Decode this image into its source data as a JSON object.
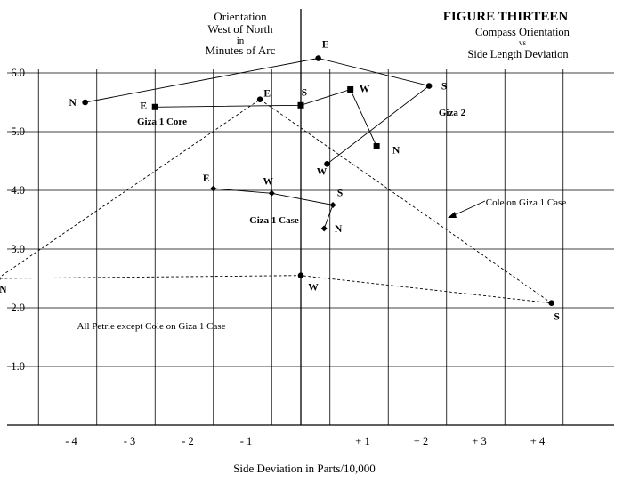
{
  "chart_data": {
    "type": "scatter",
    "title": "FIGURE THIRTEEN",
    "subtitle_lines": [
      "Compass Orientation",
      "vs",
      "Side Length Deviation"
    ],
    "xlabel": "Side Deviation in Parts/10,000",
    "ylabel_lines": [
      "Orientation",
      "West of North",
      "in",
      "Minutes of Arc"
    ],
    "xlim": [
      -5,
      5
    ],
    "ylim": [
      0,
      6.5
    ],
    "grid": true,
    "x_ticks": [
      -4,
      -3,
      -2,
      -1,
      1,
      2,
      3,
      4
    ],
    "x_tick_labels": [
      "- 4",
      "- 3",
      "- 2",
      "- 1",
      "+ 1",
      "+ 2",
      "+ 3",
      "+ 4"
    ],
    "y_ticks": [
      1,
      2,
      3,
      4,
      5,
      6
    ],
    "y_tick_labels": [
      "1.0",
      "2.0",
      "3.0",
      "4.0",
      "5.0",
      "6.0"
    ],
    "series": [
      {
        "name": "Giza 2",
        "marker": "circle",
        "line": "solid",
        "closed": false,
        "points": [
          {
            "label": "N",
            "x": -3.7,
            "y": 5.5
          },
          {
            "label": "E",
            "x": 0.3,
            "y": 6.25
          },
          {
            "label": "S",
            "x": 2.2,
            "y": 5.78
          },
          {
            "label": "W",
            "x": 0.45,
            "y": 4.45
          }
        ]
      },
      {
        "name": "Giza 1 Core",
        "marker": "square",
        "line": "solid",
        "closed": false,
        "points": [
          {
            "label": "E",
            "x": -2.5,
            "y": 5.42
          },
          {
            "label": "S",
            "x": 0.0,
            "y": 5.45
          },
          {
            "label": "W",
            "x": 0.85,
            "y": 5.72
          },
          {
            "label": "N",
            "x": 1.3,
            "y": 4.75
          }
        ]
      },
      {
        "name": "Giza 1 Case",
        "marker": "diamond",
        "line": "solid",
        "closed": false,
        "points": [
          {
            "label": "E",
            "x": -1.5,
            "y": 4.03
          },
          {
            "label": "W",
            "x": -0.5,
            "y": 3.95
          },
          {
            "label": "S",
            "x": 0.55,
            "y": 3.75
          },
          {
            "label": "N",
            "x": 0.4,
            "y": 3.35
          }
        ]
      },
      {
        "name": "Cole on Giza 1 Case",
        "marker": "circle",
        "line": "dashed",
        "closed": true,
        "points": [
          {
            "label": "N",
            "x": -5.2,
            "y": 2.5
          },
          {
            "label": "E",
            "x": -0.7,
            "y": 5.55
          },
          {
            "label": "S",
            "x": 4.3,
            "y": 2.08
          },
          {
            "label": "W",
            "x": 0.0,
            "y": 2.55
          }
        ]
      }
    ],
    "annotations": [
      "Giza 1 Core",
      "Giza 2",
      "Giza 1 Case",
      "Cole on Giza 1 Case",
      "All Petrie except Cole on Giza 1 Case"
    ]
  }
}
